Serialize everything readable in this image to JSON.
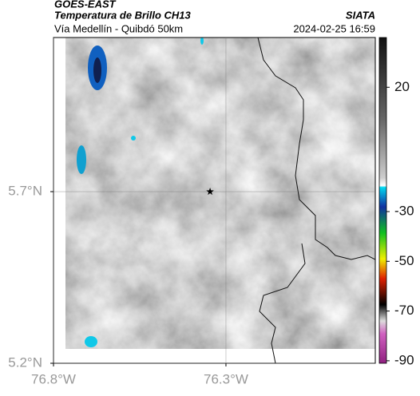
{
  "header": {
    "source": "GOES-EAST",
    "title": "Temperatura de Brillo CH13",
    "brand": "SIATA",
    "subtitle": "Vía Medellín - Quibdó 50km",
    "timestamp": "2024-02-25 16:59"
  },
  "map": {
    "xlim": [
      -76.8,
      -75.867
    ],
    "ylim": [
      5.2,
      6.149
    ],
    "xticks": [
      {
        "value": -76.8,
        "label": "76.8°W"
      },
      {
        "value": -76.3,
        "label": "76.3°W"
      }
    ],
    "yticks": [
      {
        "value": 5.2,
        "label": "5.2°N"
      },
      {
        "value": 5.7,
        "label": "5.7°N"
      }
    ],
    "grid": true,
    "marker": {
      "lon": -76.346,
      "lat": 5.7
    }
  },
  "colorbar": {
    "clim": [
      40,
      -91
    ],
    "ticks": [
      20,
      -30,
      -50,
      -70,
      -90
    ]
  }
}
